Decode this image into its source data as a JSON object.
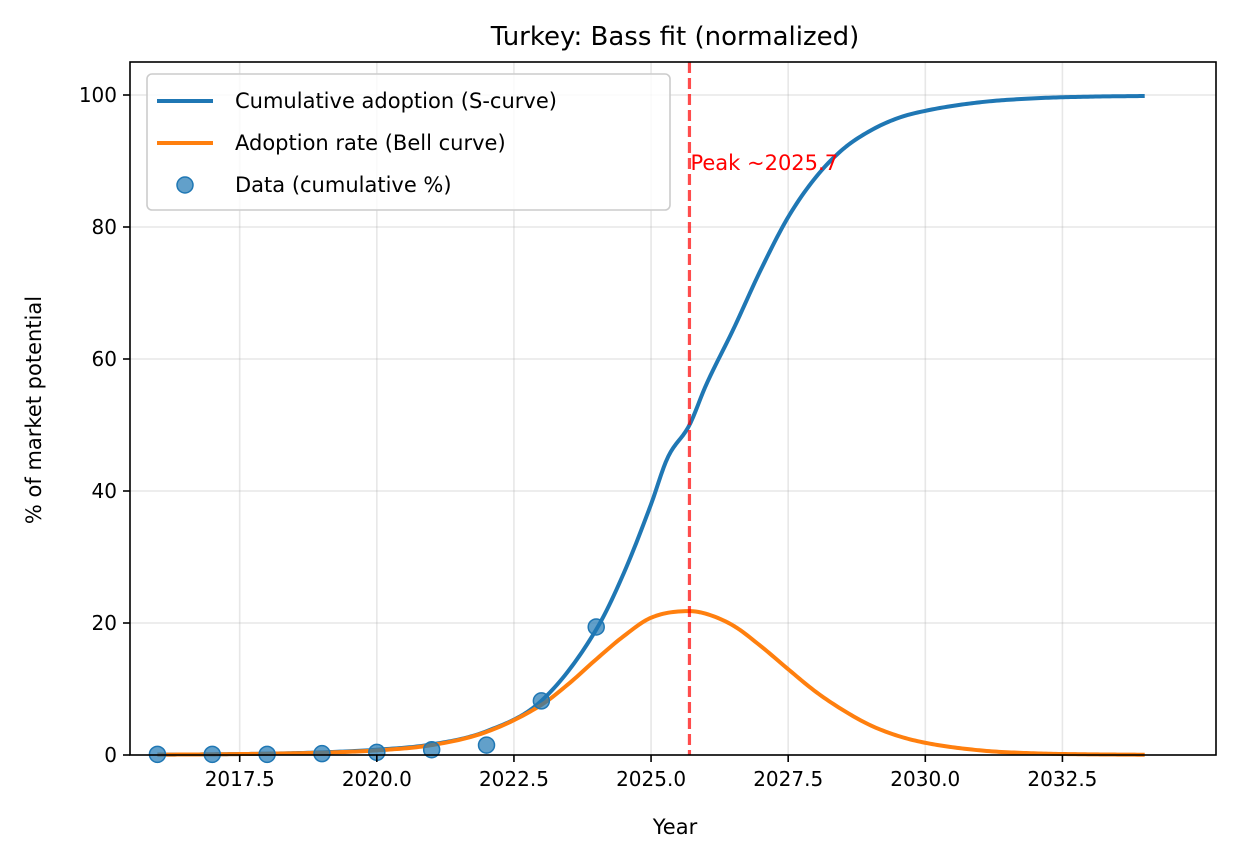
{
  "chart_data": {
    "type": "line",
    "title": "Turkey: Bass fit (normalized)",
    "xlabel": "Year",
    "ylabel": "% of market potential",
    "xlim": [
      2015.5,
      2035.3
    ],
    "ylim": [
      0,
      105
    ],
    "x_ticks": [
      2017.5,
      2020.0,
      2022.5,
      2025.0,
      2027.5,
      2030.0,
      2032.5
    ],
    "x_tick_labels": [
      "2017.5",
      "2020.0",
      "2022.5",
      "2025.0",
      "2027.5",
      "2030.0",
      "2032.5"
    ],
    "y_ticks": [
      0,
      20,
      40,
      60,
      80,
      100
    ],
    "y_tick_labels": [
      "0",
      "20",
      "40",
      "60",
      "80",
      "100"
    ],
    "grid": true,
    "legend_position": "top-left",
    "x_range": [
      2016,
      2034
    ],
    "series": [
      {
        "name": "Cumulative adoption (S-curve)",
        "kind": "line",
        "color": "#1f77b4",
        "x": [
          2016,
          2017,
          2018,
          2019,
          2020,
          2021,
          2022,
          2023,
          2024,
          2024.5,
          2025,
          2025.3,
          2025.7,
          2026,
          2026.5,
          2027,
          2027.5,
          2028,
          2028.5,
          2029,
          2029.5,
          2030,
          2031,
          2032,
          2033,
          2034
        ],
        "y": [
          0.05,
          0.1,
          0.2,
          0.4,
          0.8,
          1.6,
          3.6,
          8.2,
          19.0,
          27.5,
          38.0,
          45.0,
          50.0,
          56.0,
          64.5,
          73.5,
          81.5,
          87.5,
          91.8,
          94.6,
          96.5,
          97.6,
          98.9,
          99.5,
          99.75,
          99.85
        ]
      },
      {
        "name": "Adoption rate (Bell curve)",
        "kind": "line",
        "color": "#ff7f0e",
        "x": [
          2016,
          2017,
          2018,
          2019,
          2020,
          2021,
          2022,
          2023,
          2023.5,
          2024,
          2024.5,
          2025,
          2025.7,
          2026,
          2026.5,
          2027,
          2027.5,
          2028,
          2028.5,
          2029,
          2029.5,
          2030,
          2031,
          2032,
          2033,
          2034
        ],
        "y": [
          0.05,
          0.1,
          0.2,
          0.35,
          0.7,
          1.5,
          3.5,
          7.6,
          10.8,
          14.5,
          18.0,
          20.8,
          21.8,
          21.4,
          19.6,
          16.5,
          13.0,
          9.6,
          6.8,
          4.5,
          2.9,
          1.85,
          0.7,
          0.25,
          0.1,
          0.04
        ]
      },
      {
        "name": "Data (cumulative %)",
        "kind": "scatter",
        "color": "#1f77b4",
        "x": [
          2016,
          2017,
          2018,
          2019,
          2020,
          2021,
          2022,
          2023,
          2024
        ],
        "y": [
          0.1,
          0.1,
          0.1,
          0.2,
          0.4,
          0.8,
          1.5,
          8.2,
          19.4
        ]
      }
    ],
    "annotations": [
      {
        "type": "vline",
        "x": 2025.7,
        "color": "#ff0000",
        "style": "dashed",
        "text": "Peak ~2025.7",
        "text_y": 90
      }
    ]
  }
}
